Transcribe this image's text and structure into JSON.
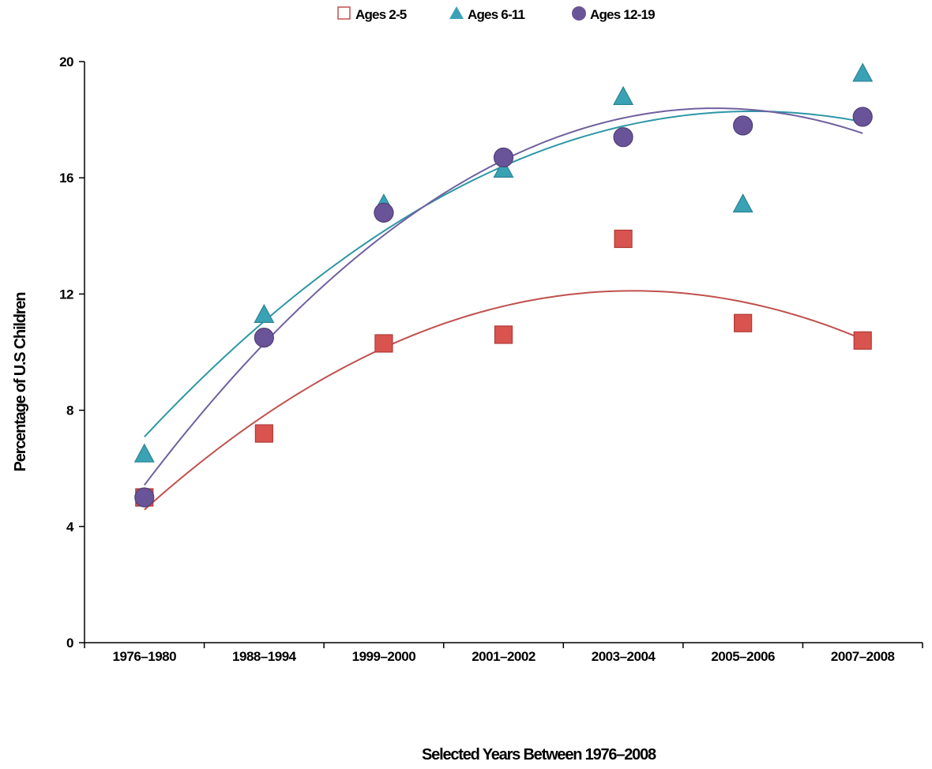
{
  "chart_data": {
    "type": "scatter",
    "title": "",
    "xlabel": "Selected Years Between 1976–2008",
    "ylabel": "Percentage of U.S Children",
    "categories": [
      "1976–1980",
      "1988–1994",
      "1999–2000",
      "2001–2002",
      "2003–2004",
      "2005–2006",
      "2007–2008"
    ],
    "ylim": [
      0,
      20
    ],
    "yticks": [
      0,
      4,
      8,
      12,
      16,
      20
    ],
    "grid": false,
    "legend_position": "top-center",
    "trendline": "polynomial (order 2)",
    "series": [
      {
        "name": "Ages 2-5",
        "marker": "square",
        "color": "#d9534f",
        "line_color": "#c0504d",
        "values": [
          5.0,
          7.2,
          10.3,
          10.6,
          13.9,
          11.0,
          10.4
        ]
      },
      {
        "name": "Ages 6-11",
        "marker": "triangle",
        "color": "#3aa2b5",
        "line_color": "#2e97a6",
        "values": [
          6.5,
          11.3,
          15.1,
          16.3,
          18.8,
          15.1,
          19.6
        ]
      },
      {
        "name": "Ages 12-19",
        "marker": "circle",
        "color": "#6a5499",
        "line_color": "#7060a0",
        "values": [
          5.0,
          10.5,
          14.8,
          16.7,
          17.4,
          17.8,
          18.1
        ]
      }
    ]
  }
}
